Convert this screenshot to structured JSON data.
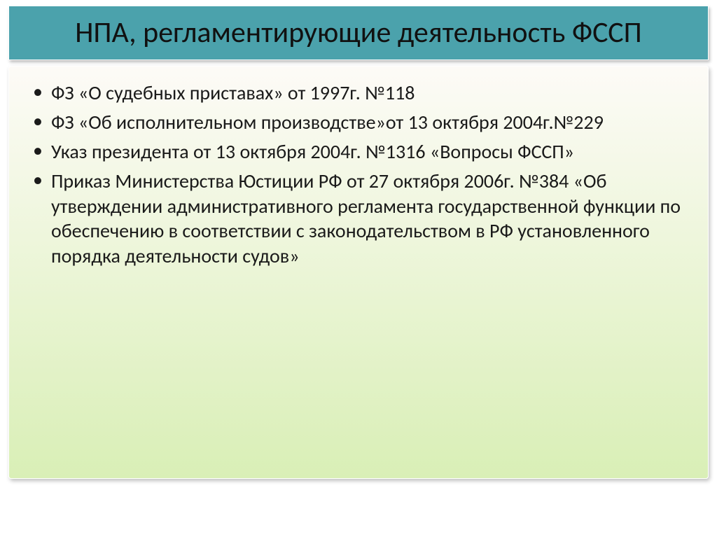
{
  "title": "НПА, регламентирующие деятельность ФССП",
  "bullets": [
    "ФЗ «О судебных приставах» от 1997г. №118",
    "ФЗ «Об исполнительном производстве»от 13 октября 2004г.№229",
    "Указ президента от 13 октября 2004г. №1316 «Вопросы ФССП»",
    "Приказ Министерства Юстиции  РФ от 27 октября 2006г. №384 «Об утверждении административного регламента государственной функции по обеспечению в соответствии с законодательством в РФ установленного порядка деятельности судов»"
  ],
  "styling": {
    "title_bg": "#4ba2ac",
    "title_color": "#111111",
    "title_fontsize": 42,
    "body_gradient_top": "#fdfbf7",
    "body_gradient_bottom": "#d9efb6",
    "bullet_color": "#1a1a1a",
    "bullet_fontsize": 28,
    "slide_width": 1024,
    "slide_height": 767
  }
}
